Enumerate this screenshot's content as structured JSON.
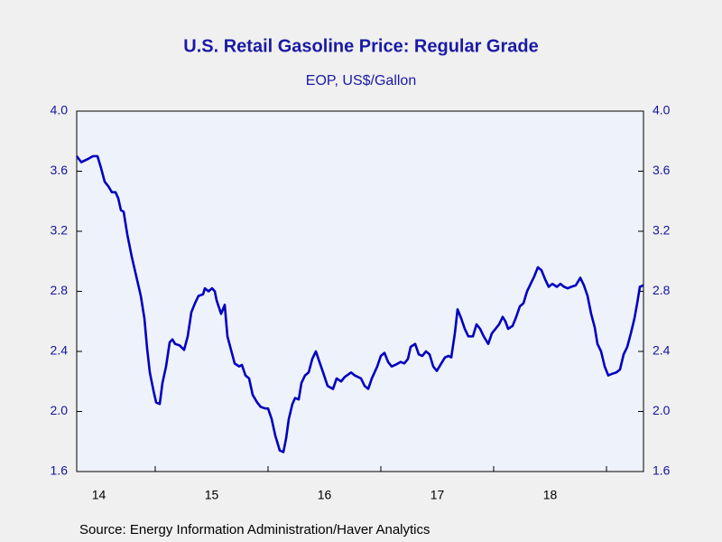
{
  "chart_data": {
    "type": "line",
    "title": "U.S. Retail Gasoline Price: Regular Grade",
    "subtitle": "EOP, US$/Gallon",
    "source": "Source:  Energy Information Administration/Haver Analytics",
    "color": "#0000c0",
    "xlim": [
      2014.304,
      2019.328
    ],
    "xticks": [
      2015,
      2016,
      2017,
      2018,
      2019
    ],
    "xtick_labels": [
      {
        "value": 2014.5,
        "label": "14"
      },
      {
        "value": 2015.5,
        "label": "15"
      },
      {
        "value": 2016.5,
        "label": "16"
      },
      {
        "value": 2017.5,
        "label": "17"
      },
      {
        "value": 2018.5,
        "label": "18"
      }
    ],
    "ylim": [
      1.6,
      4.0
    ],
    "yticks": [
      1.6,
      {
        "value": 2,
        "label": "2.0"
      },
      2.4,
      2.8,
      3.2,
      3.6,
      {
        "value": 4,
        "label": "4.0"
      }
    ],
    "x": [
      2014.304,
      2014.344,
      2014.4,
      2014.448,
      2014.488,
      2014.52,
      2014.552,
      2014.584,
      2014.616,
      2014.648,
      2014.672,
      2014.696,
      2014.72,
      2014.752,
      2014.792,
      2014.832,
      2014.872,
      2014.904,
      2014.928,
      2014.952,
      2014.984,
      2015.008,
      2015.04,
      2015.064,
      2015.096,
      2015.128,
      2015.152,
      2015.176,
      2015.216,
      2015.256,
      2015.288,
      2015.32,
      2015.352,
      2015.384,
      2015.424,
      2015.44,
      2015.472,
      2015.504,
      2015.528,
      2015.544,
      2015.584,
      2015.616,
      2015.64,
      2015.672,
      2015.704,
      2015.744,
      2015.768,
      2015.8,
      2015.832,
      2015.864,
      2015.904,
      2015.936,
      2015.976,
      2016.0,
      2016.032,
      2016.064,
      2016.104,
      2016.136,
      2016.16,
      2016.184,
      2016.216,
      2016.24,
      2016.272,
      2016.296,
      2016.328,
      2016.36,
      2016.392,
      2016.424,
      2016.456,
      2016.488,
      2016.528,
      2016.576,
      2016.608,
      2016.648,
      2016.68,
      2016.736,
      2016.768,
      2016.824,
      2016.856,
      2016.888,
      2016.92,
      2016.968,
      2017.0,
      2017.032,
      2017.064,
      2017.096,
      2017.128,
      2017.176,
      2017.208,
      2017.24,
      2017.264,
      2017.304,
      2017.336,
      2017.368,
      2017.4,
      2017.432,
      2017.464,
      2017.496,
      2017.528,
      2017.568,
      2017.6,
      2017.624,
      2017.656,
      2017.68,
      2017.712,
      2017.744,
      2017.776,
      2017.816,
      2017.848,
      2017.88,
      2017.912,
      2017.952,
      2017.984,
      2018.016,
      2018.048,
      2018.08,
      2018.104,
      2018.128,
      2018.168,
      2018.2,
      2018.232,
      2018.264,
      2018.296,
      2018.328,
      2018.36,
      2018.392,
      2018.424,
      2018.456,
      2018.488,
      2018.52,
      2018.56,
      2018.592,
      2018.624,
      2018.656,
      2018.688,
      2018.728,
      2018.768,
      2018.8,
      2018.832,
      2018.864,
      2018.896,
      2018.92,
      2018.952,
      2018.984,
      2019.016,
      2019.048,
      2019.088,
      2019.12,
      2019.152,
      2019.184,
      2019.216,
      2019.248,
      2019.272,
      2019.296,
      2019.328
    ],
    "values": [
      3.7,
      3.66,
      3.68,
      3.7,
      3.7,
      3.62,
      3.53,
      3.5,
      3.46,
      3.46,
      3.42,
      3.34,
      3.33,
      3.18,
      3.03,
      2.9,
      2.77,
      2.62,
      2.42,
      2.26,
      2.14,
      2.06,
      2.05,
      2.19,
      2.3,
      2.46,
      2.48,
      2.45,
      2.44,
      2.41,
      2.5,
      2.66,
      2.72,
      2.77,
      2.78,
      2.82,
      2.8,
      2.82,
      2.8,
      2.74,
      2.65,
      2.71,
      2.5,
      2.41,
      2.32,
      2.3,
      2.31,
      2.24,
      2.22,
      2.11,
      2.06,
      2.03,
      2.02,
      2.02,
      1.95,
      1.84,
      1.74,
      1.73,
      1.82,
      1.95,
      2.05,
      2.09,
      2.08,
      2.19,
      2.24,
      2.26,
      2.35,
      2.4,
      2.33,
      2.26,
      2.17,
      2.15,
      2.22,
      2.2,
      2.23,
      2.26,
      2.24,
      2.22,
      2.17,
      2.15,
      2.22,
      2.3,
      2.37,
      2.39,
      2.33,
      2.3,
      2.31,
      2.33,
      2.32,
      2.35,
      2.43,
      2.45,
      2.38,
      2.37,
      2.4,
      2.38,
      2.3,
      2.27,
      2.31,
      2.36,
      2.37,
      2.36,
      2.52,
      2.68,
      2.62,
      2.55,
      2.5,
      2.5,
      2.58,
      2.55,
      2.5,
      2.45,
      2.52,
      2.55,
      2.58,
      2.63,
      2.6,
      2.55,
      2.57,
      2.63,
      2.7,
      2.72,
      2.8,
      2.85,
      2.9,
      2.96,
      2.94,
      2.88,
      2.83,
      2.85,
      2.83,
      2.85,
      2.83,
      2.82,
      2.83,
      2.84,
      2.89,
      2.84,
      2.77,
      2.65,
      2.56,
      2.45,
      2.4,
      2.3,
      2.24,
      2.25,
      2.26,
      2.28,
      2.38,
      2.43,
      2.52,
      2.62,
      2.72,
      2.83,
      2.84
    ]
  }
}
